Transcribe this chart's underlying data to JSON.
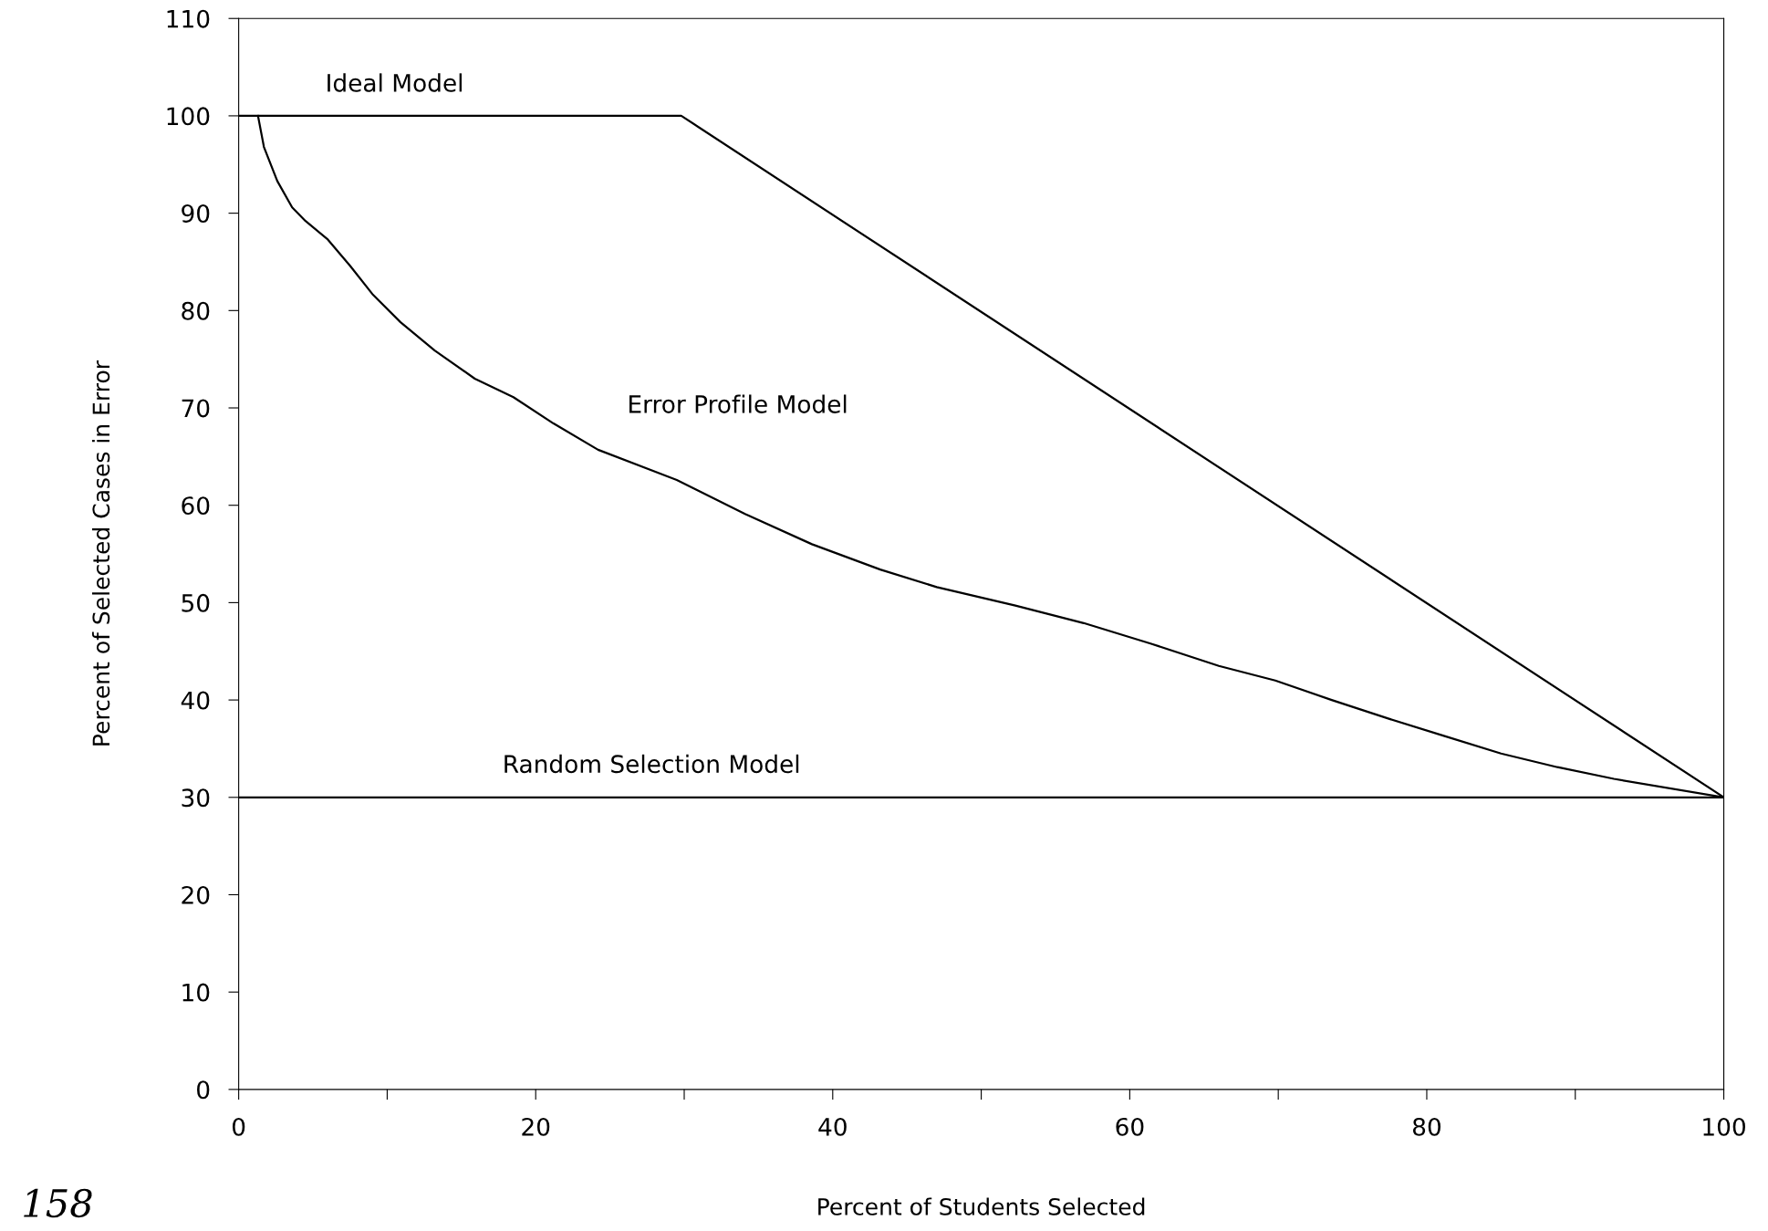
{
  "chart_data": {
    "type": "line",
    "xlabel": "Percent of Students Selected",
    "ylabel": "Percent of Selected Cases in Error",
    "series": [
      {
        "name": "Ideal Model",
        "color": "#000000",
        "x": [
          0,
          29.8,
          100
        ],
        "values": [
          100,
          100,
          30
        ]
      },
      {
        "name": "Error Profile Model",
        "color": "#000000",
        "x": [
          1.3,
          1.7,
          2.6,
          3.6,
          4.5,
          6.0,
          7.5,
          9.0,
          10.9,
          13.2,
          15.9,
          18.5,
          21.2,
          24.2,
          29.5,
          34.1,
          38.6,
          43.2,
          47.0,
          52.3,
          56.9,
          61.4,
          66.0,
          69.8,
          73.6,
          77.4,
          81.2,
          85.0,
          88.8,
          92.6,
          100
        ],
        "values": [
          100,
          96.8,
          93.3,
          90.6,
          89.2,
          87.3,
          84.6,
          81.7,
          78.8,
          75.9,
          73.0,
          71.1,
          68.4,
          65.7,
          62.6,
          59.1,
          56.0,
          53.4,
          51.6,
          49.7,
          47.9,
          45.8,
          43.5,
          42.0,
          40.0,
          38.1,
          36.3,
          34.5,
          33.1,
          31.9,
          30
        ]
      },
      {
        "name": "Random Selection Model",
        "color": "#000000",
        "x": [
          0,
          100
        ],
        "values": [
          30,
          30
        ]
      }
    ],
    "xlim": [
      0,
      100
    ],
    "ylim": [
      0,
      110
    ],
    "xticks": [
      0,
      {
        "value": 10,
        "label": null
      },
      20,
      {
        "value": 30,
        "label": null
      },
      40,
      {
        "value": 50,
        "label": null
      },
      60,
      {
        "value": 70,
        "label": null
      },
      80,
      {
        "value": 90,
        "label": null
      },
      100
    ],
    "yticks": [
      0,
      10,
      20,
      30,
      40,
      50,
      60,
      70,
      80,
      90,
      100,
      110
    ],
    "grid": false,
    "marker": "none",
    "line_style": "solid",
    "annotations": [
      "158"
    ]
  }
}
